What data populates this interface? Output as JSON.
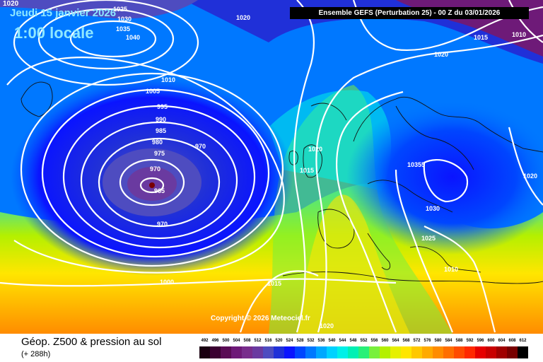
{
  "header": {
    "model_label": "Ensemble GEFS  (Perturbation 25)  -  00 Z du 03/01/2026",
    "valid_date": "Jeudi 15 janvier 2026",
    "local_time": "1:00 locale",
    "corner_isobar": "1020"
  },
  "map": {
    "isobar_labels": [
      "1025",
      "1030",
      "1035",
      "1040",
      "1020",
      "1010",
      "1005",
      "995",
      "990",
      "985",
      "980",
      "975",
      "970",
      "970",
      "965",
      "970",
      "1000",
      "1015",
      "1020",
      "1015",
      "1020",
      "1015",
      "1010",
      "1020",
      "10355",
      "1030",
      "1025",
      "1020",
      "1010",
      "1020"
    ],
    "copyright": "Copyright © 2026 Meteociel.fr"
  },
  "footer": {
    "product": "Géop. Z500 & pression au sol",
    "forecast_hour": "(+ 288h)"
  },
  "legend": {
    "values": [
      "492",
      "496",
      "500",
      "504",
      "508",
      "512",
      "516",
      "520",
      "524",
      "528",
      "532",
      "536",
      "540",
      "544",
      "548",
      "552",
      "556",
      "560",
      "564",
      "568",
      "572",
      "576",
      "580",
      "584",
      "588",
      "592",
      "596",
      "600",
      "604",
      "608",
      "612"
    ],
    "colors": [
      "#1a0010",
      "#3a0030",
      "#5a0c55",
      "#6e1a78",
      "#782d8c",
      "#6a3aa0",
      "#4e4cc0",
      "#2030d8",
      "#0a14ff",
      "#0046ff",
      "#0078ff",
      "#00a8ff",
      "#00d2ff",
      "#00f0e8",
      "#00f0b4",
      "#28f078",
      "#78f03c",
      "#b4f000",
      "#e6f000",
      "#ffe600",
      "#ffc800",
      "#ffaa00",
      "#ff8c00",
      "#ff6e00",
      "#ff4b00",
      "#ff2800",
      "#e60000",
      "#c80000",
      "#a00000",
      "#780000",
      "#000000"
    ]
  }
}
